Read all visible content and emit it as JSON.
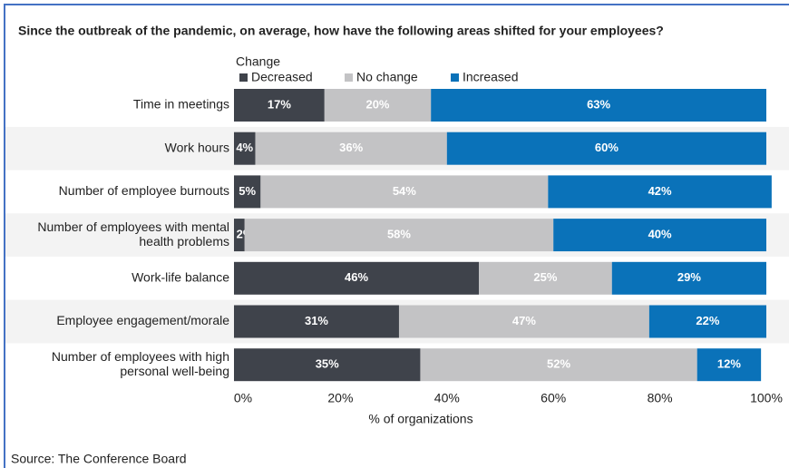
{
  "chart_data": {
    "type": "stacked_barh",
    "title": "Since the outbreak of the pandemic, on average, how have the following areas shifted for your employees?",
    "legend_title": "Change",
    "categories": [
      "Time in meetings",
      "Work hours",
      "Number of employee burnouts",
      "Number of employees with mental health problems",
      "Work-life balance",
      "Employee engagement/morale",
      "Number of employees with high personal well-being"
    ],
    "series": [
      {
        "name": "Decreased",
        "color": "#3f434b",
        "values": [
          17,
          4,
          5,
          2,
          46,
          31,
          35
        ],
        "value_labels": [
          "17%",
          "4%",
          "5%",
          "2%",
          "46%",
          "31%",
          "35%"
        ]
      },
      {
        "name": "No change",
        "color": "#c3c3c5",
        "values": [
          20,
          36,
          54,
          58,
          25,
          47,
          52
        ],
        "value_labels": [
          "20%",
          "36%",
          "54%",
          "58%",
          "25%",
          "47%",
          "52%"
        ]
      },
      {
        "name": "Increased",
        "color": "#0a72b9",
        "values": [
          63,
          60,
          42,
          40,
          29,
          22,
          12
        ],
        "value_labels": [
          "63%",
          "60%",
          "42%",
          "40%",
          "29%",
          "22%",
          "12%"
        ]
      }
    ],
    "xlim": [
      0,
      100
    ],
    "xticks": [
      {
        "value": 0,
        "label": "0%"
      },
      {
        "value": 20,
        "label": "20%"
      },
      {
        "value": 40,
        "label": "40%"
      },
      {
        "value": 60,
        "label": "60%"
      },
      {
        "value": 80,
        "label": "80%"
      },
      {
        "value": 100,
        "label": "100%"
      }
    ],
    "xlabel": "% of organizations",
    "source": "Source: The Conference Board"
  }
}
